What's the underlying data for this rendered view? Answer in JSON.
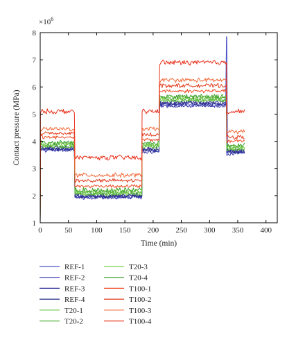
{
  "chart_data": {
    "type": "line",
    "xlabel": "Time (min)",
    "ylabel": "Contact pressure (MPa)",
    "y_multiplier_label": "×10",
    "y_multiplier_exponent": "6",
    "xlim": [
      0,
      420
    ],
    "ylim": [
      1,
      8
    ],
    "x_ticks": [
      "0",
      "50",
      "100",
      "150",
      "200",
      "250",
      "300",
      "350",
      "400"
    ],
    "y_ticks": [
      "1",
      "2",
      "3",
      "4",
      "5",
      "6",
      "7",
      "8"
    ],
    "legend_placement": "bottom",
    "segments_x": [
      0,
      61,
      180,
      211,
      330,
      362
    ],
    "series": [
      {
        "name": "REF-1",
        "color": "#4a52c8",
        "levels": [
          3.7,
          1.95,
          3.65,
          5.35,
          3.6
        ],
        "spike": {
          "x": 330,
          "y": 7.85
        }
      },
      {
        "name": "REF-2",
        "color": "#3d3fae",
        "levels": [
          3.68,
          1.93,
          3.62,
          5.3,
          3.55
        ]
      },
      {
        "name": "REF-3",
        "color": "#2f2f96",
        "levels": [
          3.72,
          1.98,
          3.67,
          5.38,
          3.62
        ]
      },
      {
        "name": "REF-4",
        "color": "#272b85",
        "levels": [
          3.75,
          2.0,
          3.7,
          5.42,
          3.65
        ]
      },
      {
        "name": "T20-1",
        "color": "#5fbf3a",
        "levels": [
          3.8,
          2.05,
          3.78,
          5.5,
          3.7
        ]
      },
      {
        "name": "T20-2",
        "color": "#4caf35",
        "levels": [
          3.85,
          2.1,
          3.85,
          5.55,
          3.75
        ]
      },
      {
        "name": "T20-3",
        "color": "#7ccf4b",
        "levels": [
          3.9,
          2.15,
          3.9,
          5.6,
          3.8
        ]
      },
      {
        "name": "T20-4",
        "color": "#3e9e2c",
        "levels": [
          3.95,
          2.2,
          3.95,
          5.65,
          3.85
        ]
      },
      {
        "name": "T100-1",
        "color": "#f04a22",
        "levels": [
          4.15,
          2.35,
          4.05,
          5.85,
          4.0
        ]
      },
      {
        "name": "T100-2",
        "color": "#e23a1c",
        "levels": [
          4.3,
          2.55,
          4.25,
          6.05,
          4.15
        ]
      },
      {
        "name": "T100-3",
        "color": "#f26a3a",
        "levels": [
          4.45,
          2.75,
          4.45,
          6.25,
          4.35
        ]
      },
      {
        "name": "T100-4",
        "color": "#e8301a",
        "levels": [
          5.1,
          3.4,
          5.1,
          6.9,
          5.1
        ]
      }
    ]
  }
}
